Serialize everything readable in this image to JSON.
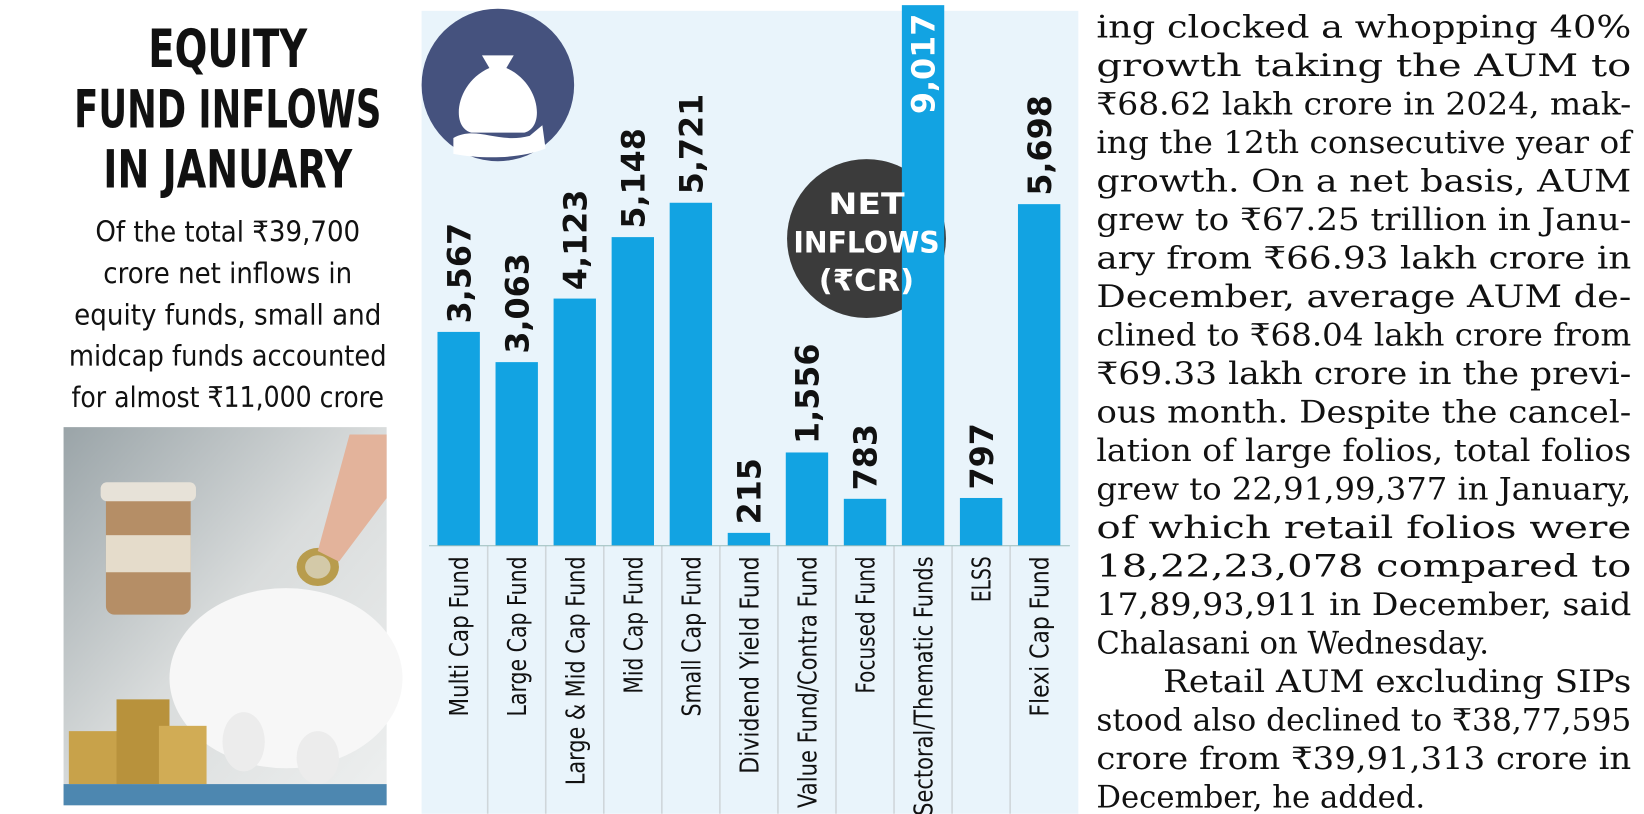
{
  "chart_data": {
    "type": "bar",
    "title": [
      "EQUITY",
      "FUND INFLOWS",
      "IN JANUARY"
    ],
    "subtitle": [
      "Of the total ₹39,700",
      "crore net inflows in",
      "equity funds, small and",
      "midcap funds accounted",
      "for almost ₹11,000 crore"
    ],
    "annotation": [
      "NET",
      "INFLOWS",
      "(₹CR)"
    ],
    "categories": [
      "Multi Cap Fund",
      "Large Cap Fund",
      "Large & Mid Cap Fund",
      "Mid Cap Fund",
      "Small Cap Fund",
      "Dividend Yield Fund",
      "Value Fund/Contra Fund",
      "Focused Fund",
      "Sectoral/Thematic Funds",
      "ELSS",
      "Flexi Cap Fund"
    ],
    "values": [
      3567,
      3063,
      4123,
      5148,
      5721,
      215,
      1556,
      783,
      9017,
      797,
      5698
    ],
    "value_labels": [
      "3,567",
      "3,063",
      "4,123",
      "5,148",
      "5,721",
      "215",
      "1,556",
      "783",
      "9,017",
      "797",
      "5,698"
    ],
    "color": "#12a3e2"
  },
  "article": {
    "paragraphs": [
      [
        "ing clocked a whopping 40%",
        "growth taking the AUM to",
        "₹68.62 lakh crore in 2024, mak-",
        "ing the 12th consecutive year of",
        "growth. On a net basis, AUM",
        "grew to ₹67.25 trillion in Janu-",
        "ary from ₹66.93 lakh crore in",
        "December, average AUM de-",
        "clined to ₹68.04 lakh crore from",
        "₹69.33 lakh crore in the previ-",
        "ous month. Despite the cancel-",
        "lation of large folios, total folios",
        "grew to 22,91,99,377 in January,",
        "of which retail folios were",
        "18,22,23,078 compared to",
        "17,89,93,911 in December, said",
        "Chalasani on Wednesday."
      ],
      [
        "Retail AUM excluding SIPs",
        "stood also declined to ₹38,77,595",
        "crore from ₹39,91,313 crore in",
        "December, he added."
      ]
    ]
  }
}
